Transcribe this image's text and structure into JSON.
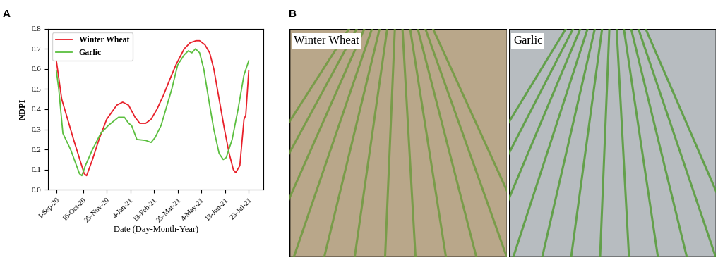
{
  "panel_labels": [
    "A",
    "B"
  ],
  "chart_data": {
    "type": "line",
    "x_label": "Date (Day-Month-Year)",
    "y_label": "NDPI",
    "xlim": [
      "2020-08-18",
      "2021-08-17"
    ],
    "xticks": [
      {
        "value": "2020-09-01",
        "label": "1-Sep-20"
      },
      {
        "value": "2020-10-16",
        "label": "16-Oct-20"
      },
      {
        "value": "2020-11-25",
        "label": "25-Nov-20"
      },
      {
        "value": "2021-01-04",
        "label": "4-Jan-21"
      },
      {
        "value": "2021-02-13",
        "label": "13-Feb-21"
      },
      {
        "value": "2021-03-25",
        "label": "25-Mar-21"
      },
      {
        "value": "2021-05-04",
        "label": "4-May-21"
      },
      {
        "value": "2021-06-13",
        "label": "13-Jun-21"
      },
      {
        "value": "2021-07-23",
        "label": "23-Jul-21"
      }
    ],
    "ylim": [
      0,
      0.8
    ],
    "yticks": [
      {
        "value": 0,
        "label": "0.0"
      },
      0.1,
      0.2,
      0.3,
      0.4,
      0.5,
      0.6,
      0.7,
      0.8
    ],
    "legend": "upper left",
    "grid": false,
    "series": [
      {
        "name": "Winter Wheat",
        "color": "#e8202a",
        "x": [
          "2020-09-01",
          "2020-09-10",
          "2020-09-30",
          "2020-10-18",
          "2020-10-22",
          "2020-11-01",
          "2020-11-12",
          "2020-11-25",
          "2020-12-12",
          "2020-12-22",
          "2021-01-01",
          "2021-01-12",
          "2021-01-20",
          "2021-01-30",
          "2021-02-08",
          "2021-02-18",
          "2021-03-01",
          "2021-03-12",
          "2021-03-22",
          "2021-04-05",
          "2021-04-15",
          "2021-04-25",
          "2021-05-01",
          "2021-05-10",
          "2021-05-18",
          "2021-05-25",
          "2021-06-03",
          "2021-06-12",
          "2021-06-20",
          "2021-06-27",
          "2021-07-01",
          "2021-07-08",
          "2021-07-15",
          "2021-07-18",
          "2021-07-23"
        ],
        "values": [
          0.64,
          0.45,
          0.25,
          0.08,
          0.07,
          0.15,
          0.25,
          0.35,
          0.42,
          0.435,
          0.42,
          0.36,
          0.33,
          0.33,
          0.35,
          0.4,
          0.47,
          0.55,
          0.62,
          0.7,
          0.73,
          0.74,
          0.74,
          0.72,
          0.68,
          0.6,
          0.45,
          0.3,
          0.18,
          0.1,
          0.085,
          0.12,
          0.35,
          0.37,
          0.59
        ]
      },
      {
        "name": "Garlic",
        "color": "#5bbf3f",
        "x": [
          "2020-09-01",
          "2020-09-05",
          "2020-09-12",
          "2020-09-25",
          "2020-10-10",
          "2020-10-14",
          "2020-10-20",
          "2020-11-01",
          "2020-11-15",
          "2020-11-28",
          "2020-12-15",
          "2020-12-25",
          "2021-01-01",
          "2021-01-06",
          "2021-01-15",
          "2021-01-30",
          "2021-02-08",
          "2021-02-15",
          "2021-02-25",
          "2021-03-05",
          "2021-03-15",
          "2021-03-25",
          "2021-04-05",
          "2021-04-12",
          "2021-04-18",
          "2021-04-24",
          "2021-05-01",
          "2021-05-08",
          "2021-05-18",
          "2021-05-25",
          "2021-06-03",
          "2021-06-10",
          "2021-06-15",
          "2021-06-25",
          "2021-07-05",
          "2021-07-15",
          "2021-07-23"
        ],
        "values": [
          0.59,
          0.5,
          0.28,
          0.2,
          0.08,
          0.07,
          0.12,
          0.2,
          0.28,
          0.32,
          0.36,
          0.36,
          0.33,
          0.32,
          0.25,
          0.245,
          0.235,
          0.26,
          0.32,
          0.4,
          0.5,
          0.62,
          0.67,
          0.69,
          0.68,
          0.7,
          0.68,
          0.6,
          0.42,
          0.3,
          0.18,
          0.15,
          0.16,
          0.25,
          0.4,
          0.57,
          0.64
        ]
      }
    ]
  },
  "photos": [
    {
      "label": "Winter Wheat"
    },
    {
      "label": "Garlic"
    }
  ]
}
